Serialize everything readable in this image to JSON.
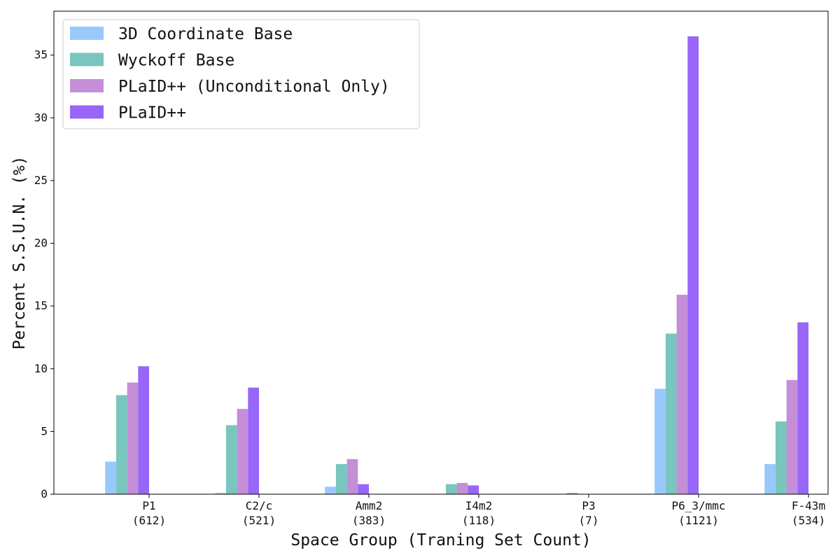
{
  "chart_data": {
    "type": "bar",
    "title": "",
    "xlabel": "Space Group (Traning Set Count)",
    "ylabel": "Percent S.S.U.N. (%)",
    "ylim": [
      0,
      38.5
    ],
    "yticks": [
      0,
      5,
      10,
      15,
      20,
      25,
      30,
      35
    ],
    "categories": [
      {
        "name": "P1",
        "count": "(612)"
      },
      {
        "name": "C2/c",
        "count": "(521)"
      },
      {
        "name": "Amm2",
        "count": "(383)"
      },
      {
        "name": "I4m2",
        "count": "(118)"
      },
      {
        "name": "P3",
        "count": "(7)"
      },
      {
        "name": "P6_3/mmc",
        "count": "(1121)"
      },
      {
        "name": "F-43m",
        "count": "(534)"
      }
    ],
    "series": [
      {
        "name": "3D Coordinate Base",
        "color": "#99c9fb",
        "values": [
          2.6,
          0.1,
          0.6,
          0.0,
          0.0,
          8.4,
          2.4
        ]
      },
      {
        "name": "Wyckoff Base",
        "color": "#79c6bf",
        "values": [
          7.9,
          5.5,
          2.4,
          0.8,
          0.0,
          12.8,
          5.8
        ]
      },
      {
        "name": "PLaID++ (Unconditional Only)",
        "color": "#c58fd8",
        "values": [
          8.9,
          6.8,
          2.8,
          0.9,
          0.1,
          15.9,
          9.1
        ]
      },
      {
        "name": "PLaID++",
        "color": "#9966fa",
        "values": [
          10.2,
          8.5,
          0.8,
          0.7,
          0.0,
          36.5,
          13.7
        ]
      }
    ],
    "grid": false,
    "legend_position": "top-left"
  }
}
